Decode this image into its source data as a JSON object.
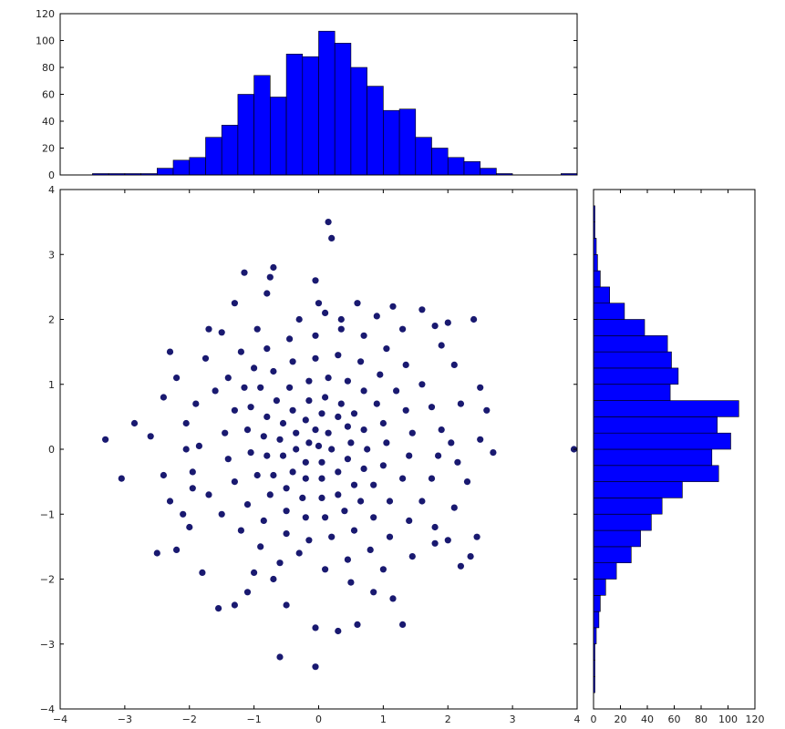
{
  "chart_data": [
    {
      "type": "scatter",
      "title": "",
      "xlabel": "",
      "ylabel": "",
      "xlim": [
        -4,
        4
      ],
      "ylim": [
        -4,
        4
      ],
      "grid": false,
      "marker_color": "#191970",
      "xticks": [
        "−4",
        "−3",
        "−2",
        "−1",
        "0",
        "1",
        "2",
        "3",
        "4"
      ],
      "yticks": [
        "−4",
        "−3",
        "−2",
        "−1",
        "0",
        "1",
        "2",
        "3",
        "4"
      ],
      "points": [
        [
          0.15,
          3.5
        ],
        [
          0.2,
          3.25
        ],
        [
          -0.7,
          2.8
        ],
        [
          -0.75,
          2.65
        ],
        [
          -1.15,
          2.72
        ],
        [
          -0.05,
          2.6
        ],
        [
          -0.8,
          2.4
        ],
        [
          -1.3,
          2.25
        ],
        [
          0.0,
          2.25
        ],
        [
          0.1,
          2.1
        ],
        [
          0.6,
          2.25
        ],
        [
          1.15,
          2.2
        ],
        [
          1.6,
          2.15
        ],
        [
          2.4,
          2.0
        ],
        [
          2.0,
          1.95
        ],
        [
          1.8,
          1.9
        ],
        [
          -1.7,
          1.85
        ],
        [
          -2.3,
          1.5
        ],
        [
          -3.3,
          0.15
        ],
        [
          -3.05,
          -0.45
        ],
        [
          -2.85,
          0.4
        ],
        [
          -2.4,
          -0.4
        ],
        [
          -2.5,
          -1.6
        ],
        [
          -2.2,
          -1.55
        ],
        [
          -1.8,
          -1.9
        ],
        [
          -1.3,
          -2.4
        ],
        [
          -1.55,
          -2.45
        ],
        [
          -1.1,
          -2.2
        ],
        [
          -0.5,
          -2.4
        ],
        [
          -0.05,
          -2.75
        ],
        [
          0.3,
          -2.8
        ],
        [
          0.6,
          -2.7
        ],
        [
          1.3,
          -2.7
        ],
        [
          -0.6,
          -3.2
        ],
        [
          -0.05,
          -3.35
        ],
        [
          2.0,
          -1.4
        ],
        [
          2.45,
          -1.35
        ],
        [
          2.35,
          -1.65
        ],
        [
          2.2,
          -1.8
        ],
        [
          1.8,
          -1.45
        ],
        [
          2.5,
          0.15
        ],
        [
          2.7,
          -0.05
        ],
        [
          2.6,
          0.6
        ],
        [
          2.5,
          0.95
        ],
        [
          3.95,
          0.0
        ],
        [
          0.85,
          -2.2
        ],
        [
          1.15,
          -2.3
        ],
        [
          -2.0,
          -1.2
        ],
        [
          -1.2,
          1.5
        ],
        [
          -1.4,
          1.1
        ],
        [
          -1.6,
          0.9
        ],
        [
          -1.9,
          0.7
        ],
        [
          -2.05,
          0.4
        ],
        [
          -1.85,
          0.05
        ],
        [
          -1.95,
          -0.35
        ],
        [
          -1.7,
          -0.7
        ],
        [
          -1.5,
          -1.0
        ],
        [
          -1.2,
          -1.25
        ],
        [
          -0.9,
          -1.5
        ],
        [
          -0.6,
          -1.75
        ],
        [
          -0.3,
          -1.6
        ],
        [
          0.1,
          -1.85
        ],
        [
          0.45,
          -1.7
        ],
        [
          0.8,
          -1.55
        ],
        [
          1.1,
          -1.35
        ],
        [
          1.4,
          -1.1
        ],
        [
          1.6,
          -0.8
        ],
        [
          1.75,
          -0.45
        ],
        [
          1.85,
          -0.1
        ],
        [
          1.9,
          0.3
        ],
        [
          1.75,
          0.65
        ],
        [
          1.6,
          1.0
        ],
        [
          1.35,
          1.3
        ],
        [
          1.05,
          1.55
        ],
        [
          0.7,
          1.75
        ],
        [
          0.35,
          1.85
        ],
        [
          -0.05,
          1.75
        ],
        [
          -0.45,
          1.7
        ],
        [
          -0.8,
          1.55
        ],
        [
          -1.0,
          1.25
        ],
        [
          -1.15,
          0.95
        ],
        [
          -1.3,
          0.6
        ],
        [
          -1.45,
          0.25
        ],
        [
          -1.4,
          -0.15
        ],
        [
          -1.3,
          -0.5
        ],
        [
          -1.1,
          -0.85
        ],
        [
          -0.85,
          -1.1
        ],
        [
          -0.5,
          -1.3
        ],
        [
          -0.15,
          -1.4
        ],
        [
          0.2,
          -1.35
        ],
        [
          0.55,
          -1.25
        ],
        [
          0.85,
          -1.05
        ],
        [
          1.1,
          -0.8
        ],
        [
          1.3,
          -0.45
        ],
        [
          1.4,
          -0.1
        ],
        [
          1.45,
          0.25
        ],
        [
          1.35,
          0.6
        ],
        [
          1.2,
          0.9
        ],
        [
          0.95,
          1.15
        ],
        [
          0.65,
          1.35
        ],
        [
          0.3,
          1.45
        ],
        [
          -0.05,
          1.4
        ],
        [
          -0.4,
          1.35
        ],
        [
          -0.7,
          1.2
        ],
        [
          -0.9,
          0.95
        ],
        [
          -1.05,
          0.65
        ],
        [
          -1.1,
          0.3
        ],
        [
          -1.05,
          -0.05
        ],
        [
          -0.95,
          -0.4
        ],
        [
          -0.75,
          -0.7
        ],
        [
          -0.5,
          -0.95
        ],
        [
          -0.2,
          -1.05
        ],
        [
          0.1,
          -1.05
        ],
        [
          0.4,
          -0.95
        ],
        [
          0.65,
          -0.8
        ],
        [
          0.85,
          -0.55
        ],
        [
          1.0,
          -0.25
        ],
        [
          1.05,
          0.1
        ],
        [
          1.0,
          0.4
        ],
        [
          0.9,
          0.7
        ],
        [
          0.7,
          0.9
        ],
        [
          0.45,
          1.05
        ],
        [
          0.15,
          1.1
        ],
        [
          -0.15,
          1.05
        ],
        [
          -0.45,
          0.95
        ],
        [
          -0.65,
          0.75
        ],
        [
          -0.8,
          0.5
        ],
        [
          -0.85,
          0.2
        ],
        [
          -0.8,
          -0.1
        ],
        [
          -0.7,
          -0.4
        ],
        [
          -0.5,
          -0.6
        ],
        [
          -0.25,
          -0.75
        ],
        [
          0.05,
          -0.75
        ],
        [
          0.3,
          -0.7
        ],
        [
          0.55,
          -0.55
        ],
        [
          0.7,
          -0.3
        ],
        [
          0.75,
          0.0
        ],
        [
          0.7,
          0.3
        ],
        [
          0.55,
          0.55
        ],
        [
          0.35,
          0.7
        ],
        [
          0.1,
          0.8
        ],
        [
          -0.15,
          0.75
        ],
        [
          -0.4,
          0.6
        ],
        [
          -0.55,
          0.4
        ],
        [
          -0.6,
          0.15
        ],
        [
          -0.55,
          -0.1
        ],
        [
          -0.4,
          -0.35
        ],
        [
          -0.2,
          -0.45
        ],
        [
          0.05,
          -0.45
        ],
        [
          0.3,
          -0.35
        ],
        [
          0.45,
          -0.15
        ],
        [
          0.5,
          0.1
        ],
        [
          0.45,
          0.35
        ],
        [
          0.3,
          0.5
        ],
        [
          0.05,
          0.55
        ],
        [
          -0.2,
          0.45
        ],
        [
          -0.35,
          0.25
        ],
        [
          -0.35,
          0.0
        ],
        [
          -0.2,
          -0.2
        ],
        [
          0.05,
          -0.2
        ],
        [
          0.2,
          0.0
        ],
        [
          0.15,
          0.25
        ],
        [
          -0.05,
          0.3
        ],
        [
          -0.15,
          0.1
        ],
        [
          0.0,
          0.05
        ],
        [
          -2.2,
          1.1
        ],
        [
          -2.4,
          0.8
        ],
        [
          -2.6,
          0.2
        ],
        [
          -2.3,
          -0.8
        ],
        [
          -2.1,
          -1.0
        ],
        [
          1.9,
          1.6
        ],
        [
          2.1,
          1.3
        ],
        [
          2.2,
          0.7
        ],
        [
          2.3,
          -0.5
        ],
        [
          2.1,
          -0.9
        ],
        [
          1.8,
          -1.2
        ],
        [
          -0.3,
          2.0
        ],
        [
          0.35,
          2.0
        ],
        [
          0.9,
          2.05
        ],
        [
          -1.5,
          1.8
        ],
        [
          -1.75,
          1.4
        ],
        [
          1.3,
          1.85
        ],
        [
          -1.0,
          -1.9
        ],
        [
          -0.7,
          -2.0
        ],
        [
          0.5,
          -2.05
        ],
        [
          1.0,
          -1.85
        ],
        [
          1.45,
          -1.65
        ],
        [
          -1.95,
          -0.6
        ],
        [
          -2.05,
          0.0
        ],
        [
          2.05,
          0.1
        ],
        [
          2.15,
          -0.2
        ],
        [
          -0.95,
          1.85
        ]
      ]
    },
    {
      "type": "bar",
      "title": "",
      "xlabel": "",
      "ylabel": "",
      "orientation": "vertical",
      "bin_edges": [
        -4,
        -3.75,
        -3.5,
        -3.25,
        -3,
        -2.75,
        -2.5,
        -2.25,
        -2,
        -1.75,
        -1.5,
        -1.25,
        -1,
        -0.75,
        -0.5,
        -0.25,
        0,
        0.25,
        0.5,
        0.75,
        1,
        1.25,
        1.5,
        1.75,
        2,
        2.25,
        2.5,
        2.75,
        3,
        3.25,
        3.5,
        3.75,
        4
      ],
      "values": [
        0,
        0,
        1,
        1,
        1,
        1,
        5,
        11,
        13,
        28,
        37,
        60,
        74,
        58,
        90,
        88,
        107,
        98,
        80,
        66,
        48,
        49,
        28,
        20,
        13,
        10,
        5,
        1,
        0,
        0,
        0,
        1
      ],
      "xlim": [
        -4,
        4
      ],
      "ylim": [
        0,
        120
      ],
      "yticks": [
        "0",
        "20",
        "40",
        "60",
        "80",
        "100",
        "120"
      ],
      "bar_color": "#0000ff"
    },
    {
      "type": "bar",
      "title": "",
      "xlabel": "",
      "ylabel": "",
      "orientation": "horizontal",
      "bin_edges": [
        -4,
        -3.75,
        -3.5,
        -3.25,
        -3,
        -2.75,
        -2.5,
        -2.25,
        -2,
        -1.75,
        -1.5,
        -1.25,
        -1,
        -0.75,
        -0.5,
        -0.25,
        0,
        0.25,
        0.5,
        0.75,
        1,
        1.25,
        1.5,
        1.75,
        2,
        2.25,
        2.5,
        2.75,
        3,
        3.25,
        3.5,
        3.75,
        4
      ],
      "values": [
        0,
        1,
        1,
        1,
        2,
        4,
        5,
        9,
        17,
        28,
        35,
        43,
        51,
        66,
        93,
        88,
        102,
        92,
        108,
        57,
        63,
        58,
        55,
        38,
        23,
        12,
        5,
        3,
        2,
        1,
        1,
        0
      ],
      "xlim": [
        0,
        120
      ],
      "ylim": [
        -4,
        4
      ],
      "xticks": [
        "0",
        "20",
        "40",
        "60",
        "80",
        "100",
        "120"
      ],
      "bar_color": "#0000ff"
    }
  ]
}
